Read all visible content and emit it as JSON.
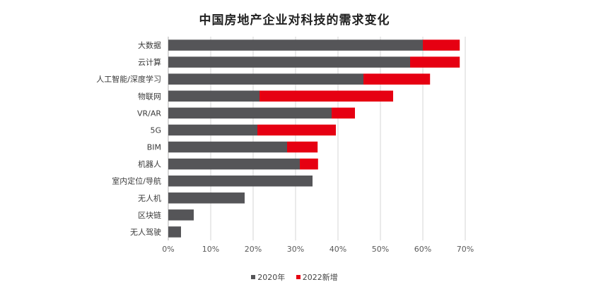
{
  "chart_data": {
    "type": "bar",
    "orientation": "horizontal",
    "stacked": true,
    "title": "中国房地产企业对科技的需求变化",
    "categories": [
      "大数据",
      "云计算",
      "人工智能/深度学习",
      "物联网",
      "VR/AR",
      "5G",
      "BIM",
      "机器人",
      "室内定位/导航",
      "无人机",
      "区块链",
      "无人驾驶"
    ],
    "series": [
      {
        "name": "2020年",
        "color": "#555558",
        "values": [
          60,
          57,
          46,
          21.5,
          38.5,
          21,
          28,
          31,
          34,
          18,
          6,
          3
        ]
      },
      {
        "name": "2022新增",
        "color": "#e60012",
        "values": [
          8.7,
          11.7,
          15.7,
          31.5,
          5.5,
          18.5,
          7.2,
          4.3,
          0,
          0,
          0,
          0
        ]
      }
    ],
    "x_ticks": [
      "0%",
      "10%",
      "20%",
      "30%",
      "40%",
      "50%",
      "60%",
      "70%"
    ],
    "xlim": [
      0,
      70
    ],
    "grid": true,
    "legend_position": "bottom"
  }
}
